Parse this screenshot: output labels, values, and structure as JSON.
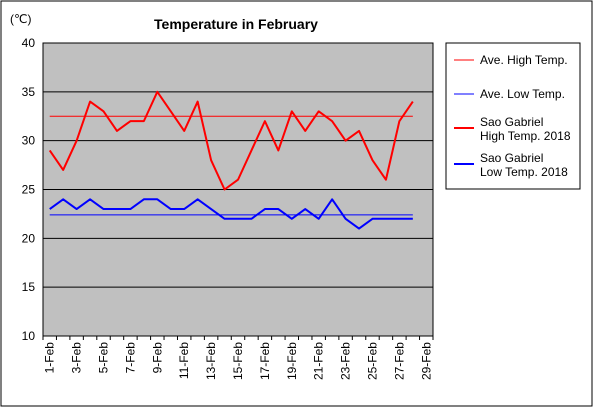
{
  "chart_data": {
    "type": "line",
    "title": "Temperature in February",
    "unit_label": "(℃)",
    "ylim": [
      10,
      40
    ],
    "y_ticks": [
      "10",
      "15",
      "20",
      "25",
      "30",
      "35",
      "40"
    ],
    "x_tick_labels": [
      "1-Feb",
      "3-Feb",
      "5-Feb",
      "7-Feb",
      "9-Feb",
      "11-Feb",
      "13-Feb",
      "15-Feb",
      "17-Feb",
      "19-Feb",
      "21-Feb",
      "23-Feb",
      "25-Feb",
      "27-Feb",
      "29-Feb"
    ],
    "x_range_days": [
      1,
      29
    ],
    "grid": true,
    "plot_background": "#c0c0c0",
    "legend_position": "right",
    "series": [
      {
        "name": "Ave. High Temp.",
        "color": "#ff0000",
        "style": "thin",
        "x": [
          1,
          29
        ],
        "values": [
          32.5,
          32.5
        ]
      },
      {
        "name": "Ave. Low Temp.",
        "color": "#0000ff",
        "style": "thin",
        "x": [
          1,
          29
        ],
        "values": [
          22.4,
          22.4
        ]
      },
      {
        "name": "Sao Gabriel\nHigh Temp. 2018",
        "name_lines": [
          "Sao Gabriel",
          "High Temp. 2018"
        ],
        "color": "#ff0000",
        "style": "thick",
        "x": [
          1,
          2,
          3,
          4,
          5,
          6,
          7,
          8,
          9,
          10,
          11,
          12,
          13,
          14,
          15,
          16,
          17,
          18,
          19,
          20,
          21,
          22,
          23,
          24,
          25,
          26,
          27,
          28
        ],
        "values": [
          29,
          27,
          30,
          34,
          33,
          31,
          32,
          32,
          35,
          33,
          31,
          34,
          28,
          25,
          26,
          29,
          32,
          29,
          33,
          31,
          33,
          32,
          30,
          31,
          28,
          26,
          32,
          34
        ]
      },
      {
        "name": "Sao Gabriel\nLow Temp. 2018",
        "name_lines": [
          "Sao Gabriel",
          "Low Temp. 2018"
        ],
        "color": "#0000ff",
        "style": "thick",
        "x": [
          1,
          2,
          3,
          4,
          5,
          6,
          7,
          8,
          9,
          10,
          11,
          12,
          13,
          14,
          15,
          16,
          17,
          18,
          19,
          20,
          21,
          22,
          23,
          24,
          25,
          26,
          27,
          28
        ],
        "values": [
          23,
          24,
          23,
          24,
          23,
          23,
          23,
          24,
          24,
          23,
          23,
          24,
          23,
          22,
          22,
          22,
          23,
          23,
          22,
          23,
          22,
          24,
          22,
          21,
          22,
          22,
          22,
          22
        ]
      }
    ]
  }
}
